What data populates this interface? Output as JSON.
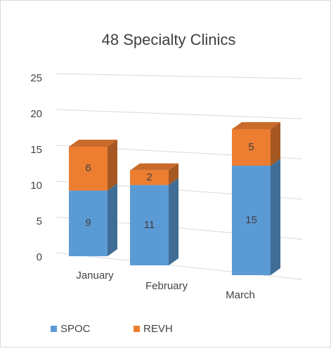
{
  "chart_data": {
    "type": "bar3d_stacked",
    "title": "48 Specialty Clinics",
    "categories": [
      "January",
      "February",
      "March"
    ],
    "series": [
      {
        "name": "SPOC",
        "color": "#5b9bd5",
        "values": [
          9,
          11,
          15
        ]
      },
      {
        "name": "REVH",
        "color": "#ed7d31",
        "values": [
          6,
          2,
          5
        ]
      }
    ],
    "ylim": [
      0,
      25
    ],
    "yticks": [
      0,
      5,
      10,
      15,
      20,
      25
    ],
    "grid": true,
    "legend": "bottom"
  }
}
